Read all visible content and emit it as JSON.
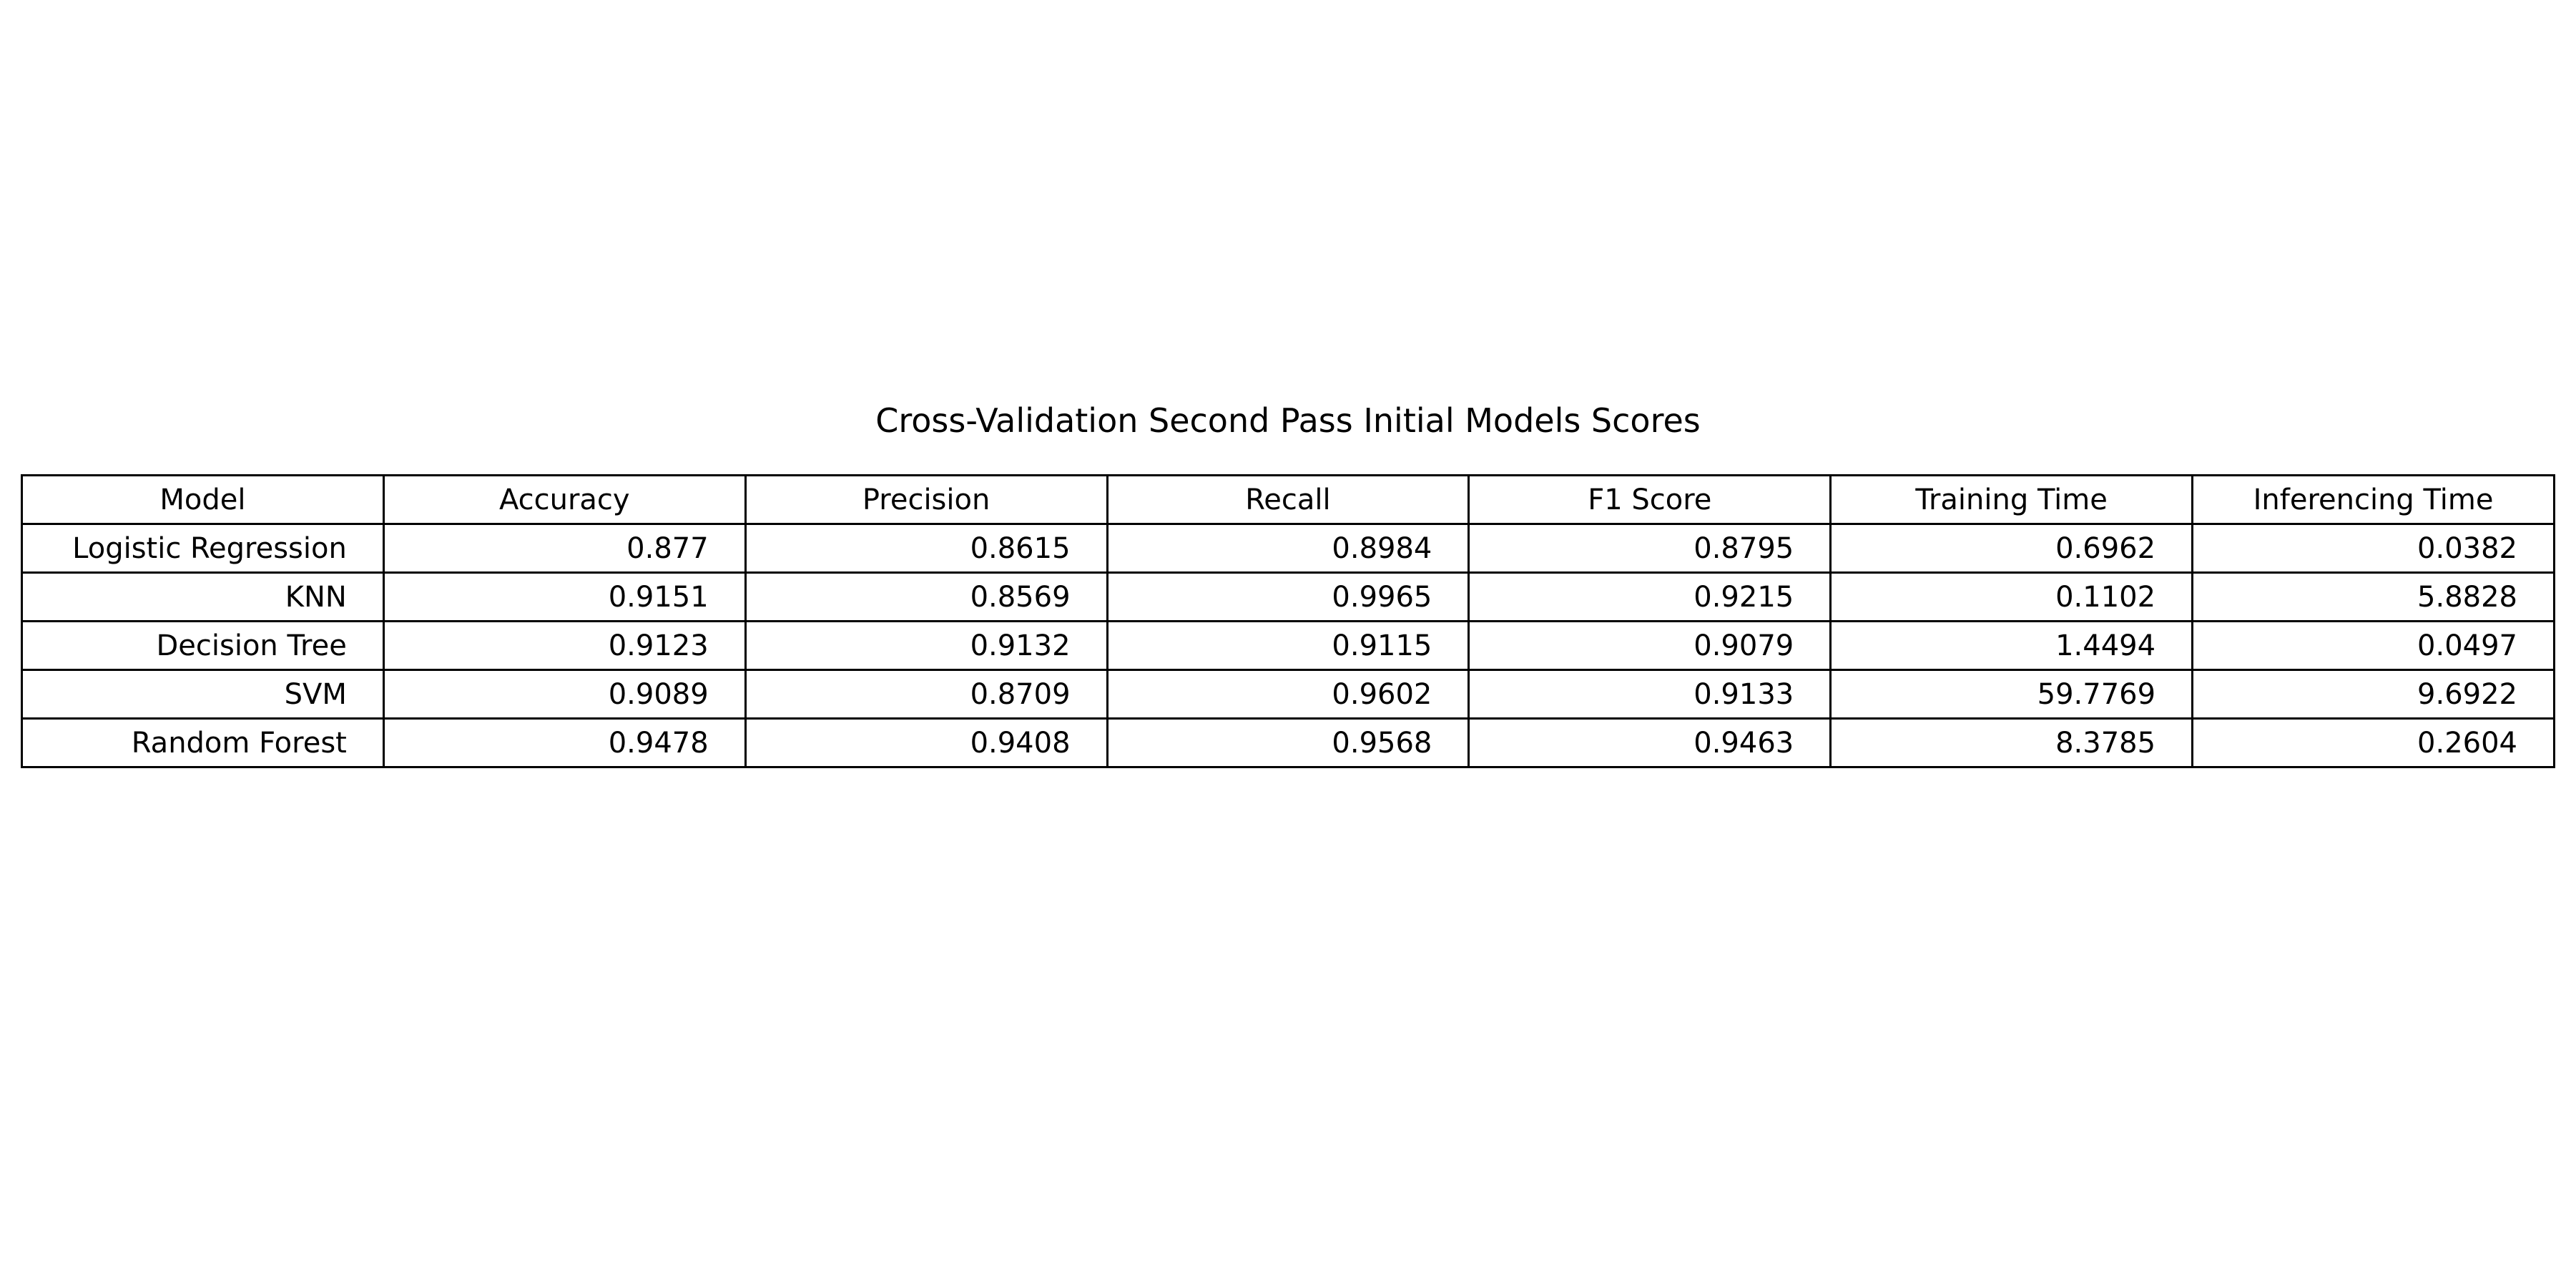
{
  "chart_data": {
    "type": "table",
    "title": "Cross-Validation Second Pass Initial Models Scores",
    "columns": [
      "Model",
      "Accuracy",
      "Precision",
      "Recall",
      "F1 Score",
      "Training Time",
      "Inferencing Time"
    ],
    "rows": [
      [
        "Logistic Regression",
        "0.877",
        "0.8615",
        "0.8984",
        "0.8795",
        "0.6962",
        "0.0382"
      ],
      [
        "KNN",
        "0.9151",
        "0.8569",
        "0.9965",
        "0.9215",
        "0.1102",
        "5.8828"
      ],
      [
        "Decision Tree",
        "0.9123",
        "0.9132",
        "0.9115",
        "0.9079",
        "1.4494",
        "0.0497"
      ],
      [
        "SVM",
        "0.9089",
        "0.8709",
        "0.9602",
        "0.9133",
        "59.7769",
        "9.6922"
      ],
      [
        "Random Forest",
        "0.9478",
        "0.9408",
        "0.9568",
        "0.9463",
        "8.3785",
        "0.2604"
      ]
    ]
  }
}
